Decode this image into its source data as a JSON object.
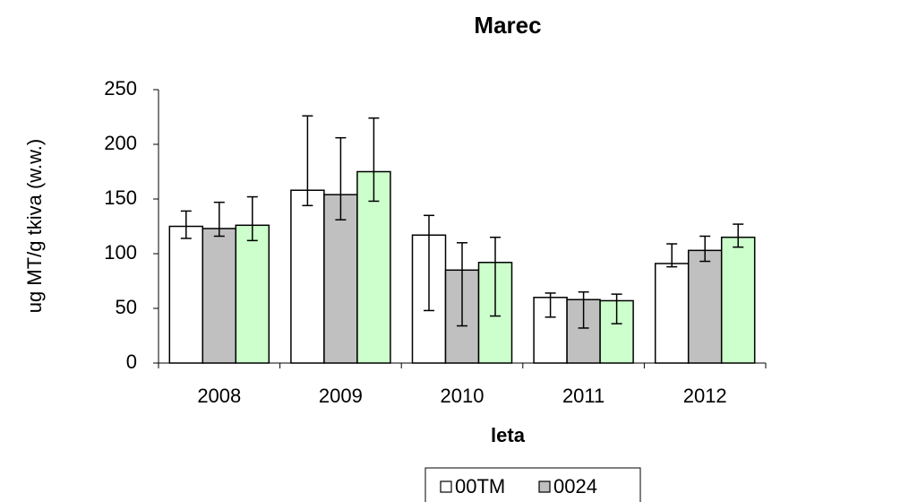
{
  "chart_data": {
    "type": "bar",
    "title": "Marec",
    "x_label": "leta",
    "y_label": "ug MT/g tkiva (w.w.)",
    "categories": [
      "2008",
      "2009",
      "2010",
      "2011",
      "2012"
    ],
    "series": [
      {
        "name": "00TM",
        "color": "#ffffff",
        "values": [
          125,
          158,
          117,
          60,
          91
        ],
        "err_low": [
          11,
          14,
          69,
          18,
          3
        ],
        "err_high": [
          14,
          68,
          18,
          4,
          18
        ]
      },
      {
        "name": "0024",
        "color": "#c0c0c0",
        "values": [
          123,
          154,
          85,
          58,
          103
        ],
        "err_low": [
          7,
          23,
          51,
          26,
          10
        ],
        "err_high": [
          24,
          52,
          25,
          7,
          13
        ]
      },
      {
        "color": "#ccffcc",
        "values": [
          126,
          175,
          92,
          57,
          115
        ],
        "err_low": [
          14,
          27,
          49,
          21,
          9
        ],
        "err_high": [
          26,
          49,
          23,
          6,
          12
        ]
      }
    ],
    "ylim": [
      0,
      250
    ],
    "yticks": [
      0,
      50,
      100,
      150,
      200,
      250
    ],
    "grid": false
  }
}
